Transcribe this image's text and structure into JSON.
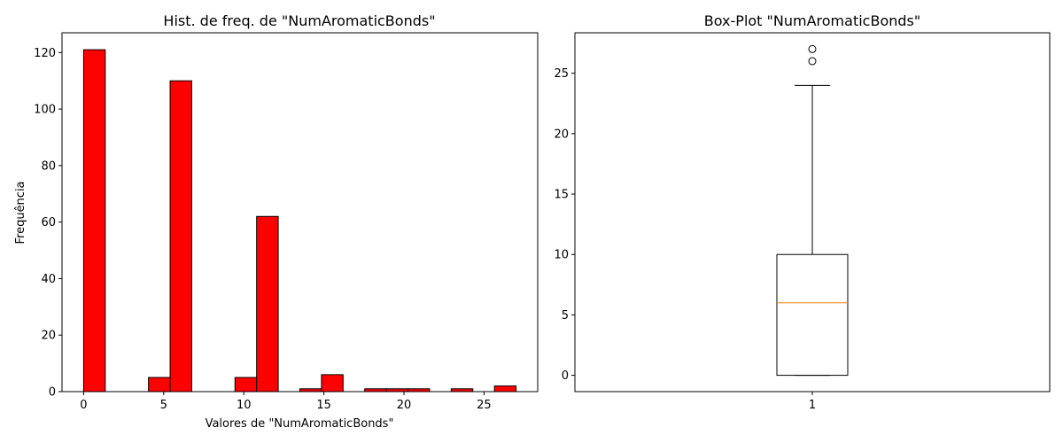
{
  "chart_data": [
    {
      "type": "bar",
      "title": "Hist. de freq. de \"NumAromaticBonds\"",
      "xlabel": "Valores de \"NumAromaticBonds\"",
      "ylabel": "Frequência",
      "xlim": [
        -1.35,
        28.35
      ],
      "ylim": [
        0,
        127
      ],
      "xticks": [
        0,
        5,
        10,
        15,
        20,
        25
      ],
      "yticks": [
        0,
        20,
        40,
        60,
        80,
        100,
        120
      ],
      "bin_width": 1.35,
      "bar_color": "#ff0000",
      "edge_color": "#000000",
      "bins": [
        {
          "x0": 0.0,
          "x1": 1.35,
          "value": 121
        },
        {
          "x0": 1.35,
          "x1": 2.7,
          "value": 0
        },
        {
          "x0": 2.7,
          "x1": 4.05,
          "value": 0
        },
        {
          "x0": 4.05,
          "x1": 5.4,
          "value": 5
        },
        {
          "x0": 5.4,
          "x1": 6.75,
          "value": 110
        },
        {
          "x0": 6.75,
          "x1": 8.1,
          "value": 0
        },
        {
          "x0": 8.1,
          "x1": 9.45,
          "value": 0
        },
        {
          "x0": 9.45,
          "x1": 10.8,
          "value": 5
        },
        {
          "x0": 10.8,
          "x1": 12.15,
          "value": 62
        },
        {
          "x0": 12.15,
          "x1": 13.5,
          "value": 0
        },
        {
          "x0": 13.5,
          "x1": 14.85,
          "value": 1
        },
        {
          "x0": 14.85,
          "x1": 16.2,
          "value": 6
        },
        {
          "x0": 16.2,
          "x1": 17.55,
          "value": 0
        },
        {
          "x0": 17.55,
          "x1": 18.9,
          "value": 1
        },
        {
          "x0": 18.9,
          "x1": 20.25,
          "value": 1
        },
        {
          "x0": 20.25,
          "x1": 21.6,
          "value": 1
        },
        {
          "x0": 21.6,
          "x1": 22.95,
          "value": 0
        },
        {
          "x0": 22.95,
          "x1": 24.3,
          "value": 1
        },
        {
          "x0": 24.3,
          "x1": 25.65,
          "value": 0
        },
        {
          "x0": 25.65,
          "x1": 27.0,
          "value": 2
        }
      ]
    },
    {
      "type": "box",
      "title": "Box-Plot \"NumAromaticBonds\"",
      "categories": [
        "1"
      ],
      "ylim": [
        -1.35,
        28.35
      ],
      "yticks": [
        0,
        5,
        10,
        15,
        20,
        25
      ],
      "box": {
        "whisker_low": 0,
        "q1": 0,
        "median": 6,
        "q3": 10,
        "whisker_high": 24,
        "outliers": [
          26,
          27
        ]
      },
      "median_color": "#ff7f0e"
    }
  ]
}
